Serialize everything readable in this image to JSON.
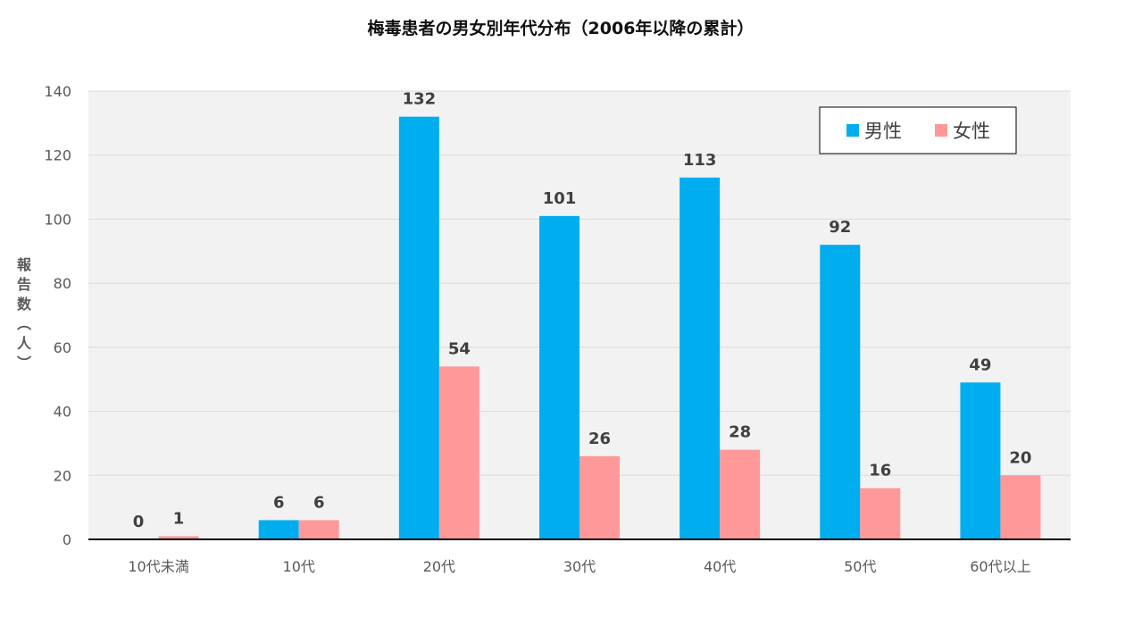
{
  "chart_data": {
    "type": "bar",
    "title": "梅毒患者の男女別年代分布（2006年以降の累計）",
    "ylabel": "報告数（人）",
    "categories": [
      "10代未満",
      "10代",
      "20代",
      "30代",
      "40代",
      "50代",
      "60代以上"
    ],
    "series": [
      {
        "name": "男性",
        "color": "#00AEEF",
        "values": [
          0,
          6,
          132,
          101,
          113,
          92,
          49
        ]
      },
      {
        "name": "女性",
        "color": "#FF9999",
        "values": [
          1,
          6,
          54,
          26,
          28,
          16,
          20
        ]
      }
    ],
    "ylim": [
      0,
      140
    ],
    "yticks": [
      0,
      20,
      40,
      60,
      80,
      100,
      120,
      140
    ],
    "grid": true,
    "legend_position": "top-right",
    "plot_background": "#F2F2F2"
  }
}
